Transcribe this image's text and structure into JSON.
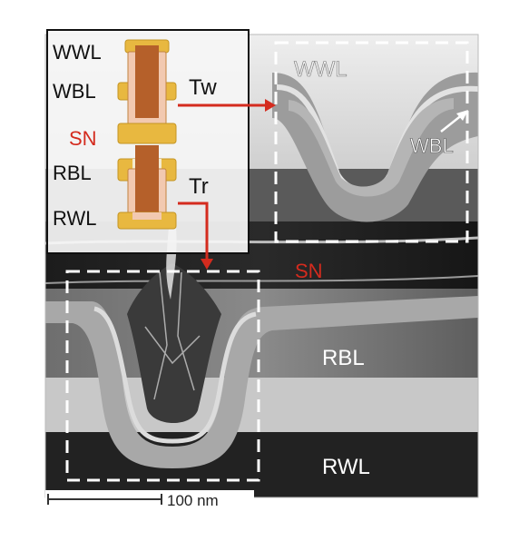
{
  "inset": {
    "layer_labels": {
      "wwl": "WWL",
      "wbl": "WBL",
      "sn": "SN",
      "rbl": "RBL",
      "rwl": "RWL"
    },
    "transistors": {
      "write": "Tw",
      "read": "Tr"
    }
  },
  "tem": {
    "layer_labels": {
      "wwl": "WWL",
      "wbl": "WBL",
      "sn": "SN",
      "rbl": "RBL",
      "rwl": "RWL"
    },
    "scale_bar": "100 nm"
  },
  "colors": {
    "electrode_gold": "#e8b840",
    "channel_brown": "#b5602a",
    "liner_pink": "#f2c9b0",
    "storage_node_red": "#d42b1e",
    "arrow_red": "#d42b1e",
    "box_dash": "#ffffff"
  }
}
